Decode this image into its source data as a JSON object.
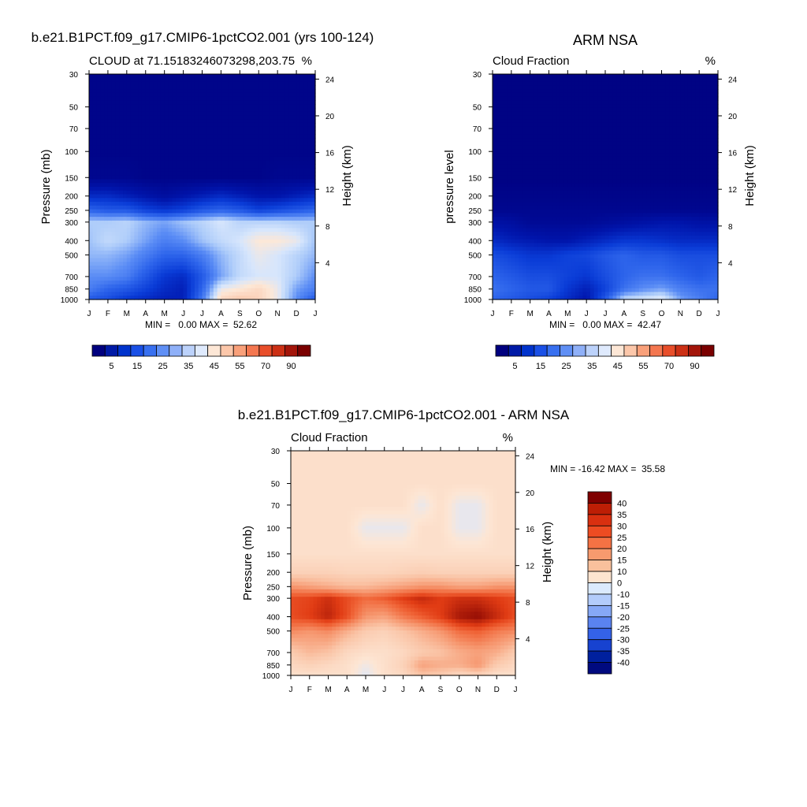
{
  "chart_data": [
    {
      "type": "heatmap",
      "id": "model",
      "title": "b.e21.B1PCT.f09_g17.CMIP6-1pctCO2.001 (yrs 100-124)",
      "subtitle_left": "CLOUD at 71.15183246073298,203.75",
      "subtitle_right": "%",
      "ylabel_left": "Pressure (mb)",
      "ylabel_right": "Height (km)",
      "x_ticks": [
        "J",
        "F",
        "M",
        "A",
        "M",
        "J",
        "J",
        "A",
        "S",
        "O",
        "N",
        "D",
        "J"
      ],
      "pressure_ticks": [
        "30",
        "50",
        "70",
        "100",
        "150",
        "200",
        "250",
        "300",
        "400",
        "500",
        "700",
        "850",
        "1000"
      ],
      "height_ticks": [
        "24",
        "20",
        "16",
        "12",
        "8",
        "4"
      ],
      "stats": "MIN =   0.00 MAX =  52.62",
      "colorbar_labels": [
        "5",
        "15",
        "25",
        "35",
        "45",
        "55",
        "70",
        "90"
      ],
      "colorbar_colors": [
        "#00007f",
        "#001aa6",
        "#0033cc",
        "#1a50e6",
        "#3870f0",
        "#5f8ff5",
        "#8fb0f8",
        "#bcd2fb",
        "#dfeafd",
        "#fde7d6",
        "#fcc7aa",
        "#f9a07a",
        "#f47750",
        "#e84e2a",
        "#cc3015",
        "#a3150a",
        "#7a0000"
      ],
      "x": [
        "J",
        "F",
        "M",
        "A",
        "M",
        "J",
        "J",
        "A",
        "S",
        "O",
        "N",
        "D",
        "J"
      ],
      "y_pressure": [
        30,
        50,
        70,
        100,
        150,
        200,
        250,
        300,
        400,
        500,
        700,
        850,
        1000
      ],
      "values": [
        [
          2,
          2,
          2,
          2,
          2,
          2,
          2,
          2,
          2,
          2,
          2,
          2,
          2
        ],
        [
          2,
          2,
          2,
          2,
          2,
          2,
          2,
          2,
          2,
          2,
          2,
          2,
          2
        ],
        [
          2,
          2,
          2,
          2,
          2,
          2,
          2,
          2,
          2,
          2,
          2,
          2,
          2
        ],
        [
          2,
          2,
          2,
          2,
          2,
          2,
          2,
          2,
          2,
          2,
          2,
          2,
          2
        ],
        [
          3,
          3,
          3,
          2,
          2,
          2,
          2,
          2,
          2,
          2,
          3,
          3,
          3
        ],
        [
          12,
          12,
          10,
          8,
          6,
          8,
          10,
          12,
          10,
          8,
          8,
          10,
          12
        ],
        [
          22,
          20,
          20,
          16,
          14,
          16,
          20,
          22,
          20,
          16,
          18,
          20,
          22
        ],
        [
          34,
          34,
          35,
          32,
          30,
          33,
          35,
          38,
          35,
          35,
          35,
          34,
          34
        ],
        [
          33,
          36,
          34,
          30,
          26,
          28,
          33,
          36,
          38,
          42,
          42,
          40,
          33
        ],
        [
          32,
          32,
          30,
          26,
          22,
          22,
          26,
          32,
          36,
          40,
          38,
          35,
          32
        ],
        [
          28,
          28,
          26,
          20,
          14,
          12,
          20,
          30,
          36,
          38,
          38,
          34,
          28
        ],
        [
          26,
          22,
          20,
          16,
          12,
          10,
          22,
          40,
          42,
          45,
          40,
          30,
          26
        ],
        [
          20,
          18,
          14,
          12,
          10,
          10,
          25,
          45,
          48,
          46,
          40,
          28,
          20
        ]
      ]
    },
    {
      "type": "heatmap",
      "id": "obs",
      "title": "ARM NSA",
      "subtitle_left": "Cloud Fraction",
      "subtitle_right": "%",
      "ylabel_left": "pressure level",
      "ylabel_right": "Height (km)",
      "x_ticks": [
        "J",
        "F",
        "M",
        "A",
        "M",
        "J",
        "J",
        "A",
        "S",
        "O",
        "N",
        "D",
        "J"
      ],
      "pressure_ticks": [
        "30",
        "50",
        "70",
        "100",
        "150",
        "200",
        "250",
        "300",
        "400",
        "500",
        "700",
        "850",
        "1000"
      ],
      "height_ticks": [
        "24",
        "20",
        "16",
        "12",
        "8",
        "4"
      ],
      "stats": "MIN =   0.00 MAX =  42.47",
      "colorbar_labels": [
        "5",
        "15",
        "25",
        "35",
        "45",
        "55",
        "70",
        "90"
      ],
      "x": [
        "J",
        "F",
        "M",
        "A",
        "M",
        "J",
        "J",
        "A",
        "S",
        "O",
        "N",
        "D",
        "J"
      ],
      "y_pressure": [
        30,
        50,
        70,
        100,
        150,
        200,
        250,
        300,
        400,
        500,
        700,
        850,
        1000
      ],
      "values": [
        [
          1,
          1,
          1,
          1,
          1,
          1,
          1,
          1,
          1,
          1,
          1,
          1,
          1
        ],
        [
          1,
          1,
          1,
          1,
          1,
          1,
          1,
          1,
          1,
          1,
          1,
          1,
          1
        ],
        [
          1,
          1,
          1,
          1,
          1,
          1,
          1,
          1,
          1,
          1,
          1,
          1,
          1
        ],
        [
          1,
          1,
          1,
          1,
          1,
          1,
          1,
          1,
          1,
          1,
          1,
          1,
          1
        ],
        [
          1,
          1,
          1,
          1,
          1,
          1,
          1,
          1,
          1,
          1,
          1,
          1,
          1
        ],
        [
          2,
          2,
          2,
          2,
          2,
          2,
          2,
          2,
          2,
          2,
          2,
          2,
          2
        ],
        [
          3,
          3,
          3,
          3,
          3,
          3,
          3,
          3,
          3,
          3,
          3,
          3,
          3
        ],
        [
          7,
          6,
          4,
          4,
          4,
          4,
          5,
          6,
          7,
          8,
          8,
          7,
          7
        ],
        [
          12,
          10,
          9,
          8,
          8,
          10,
          12,
          14,
          14,
          13,
          12,
          12,
          12
        ],
        [
          18,
          16,
          14,
          14,
          16,
          17,
          20,
          22,
          20,
          20,
          18,
          18,
          18
        ],
        [
          22,
          20,
          18,
          18,
          16,
          14,
          18,
          22,
          24,
          24,
          22,
          20,
          22
        ],
        [
          24,
          22,
          20,
          20,
          14,
          10,
          16,
          24,
          28,
          30,
          26,
          24,
          24
        ],
        [
          22,
          20,
          18,
          16,
          12,
          8,
          20,
          36,
          38,
          40,
          30,
          26,
          22
        ]
      ]
    },
    {
      "type": "heatmap",
      "id": "diff",
      "title": "b.e21.B1PCT.f09_g17.CMIP6-1pctCO2.001 - ARM NSA",
      "subtitle_left": "Cloud Fraction",
      "subtitle_right": "%",
      "ylabel_left": "Pressure (mb)",
      "ylabel_right": "Height (km)",
      "x_ticks": [
        "J",
        "F",
        "M",
        "A",
        "M",
        "J",
        "J",
        "A",
        "S",
        "O",
        "N",
        "D",
        "J"
      ],
      "pressure_ticks": [
        "30",
        "50",
        "70",
        "100",
        "150",
        "200",
        "250",
        "300",
        "400",
        "500",
        "700",
        "850",
        "1000"
      ],
      "height_ticks": [
        "24",
        "20",
        "16",
        "12",
        "8",
        "4"
      ],
      "stats": "MIN = -16.42 MAX =  35.58",
      "colorbar_labels": [
        "40",
        "35",
        "30",
        "25",
        "20",
        "15",
        "10",
        "0",
        "-10",
        "-15",
        "-20",
        "-25",
        "-30",
        "-35",
        "-40"
      ],
      "colorbar_colors": [
        "#7f0000",
        "#bd1e05",
        "#d93010",
        "#ed4c22",
        "#f47244",
        "#f79a6e",
        "#f9c09c",
        "#fde4cf",
        "#dbeafd",
        "#b3ccfb",
        "#86a8f6",
        "#5a83f0",
        "#3462e8",
        "#1742d0",
        "#00209e",
        "#000a7f"
      ],
      "x": [
        "J",
        "F",
        "M",
        "A",
        "M",
        "J",
        "J",
        "A",
        "S",
        "O",
        "N",
        "D",
        "J"
      ],
      "y_pressure": [
        30,
        50,
        70,
        100,
        150,
        200,
        250,
        300,
        400,
        500,
        700,
        850,
        1000
      ],
      "values": [
        [
          2,
          2,
          2,
          2,
          2,
          2,
          2,
          2,
          2,
          2,
          2,
          2,
          2
        ],
        [
          2,
          2,
          2,
          2,
          2,
          2,
          2,
          2,
          2,
          2,
          2,
          2,
          2
        ],
        [
          2,
          2,
          2,
          2,
          2,
          2,
          2,
          -3,
          2,
          -3,
          -3,
          2,
          2
        ],
        [
          2,
          2,
          2,
          2,
          -3,
          -3,
          -3,
          2,
          2,
          -3,
          -3,
          2,
          2
        ],
        [
          2,
          2,
          2,
          2,
          2,
          2,
          2,
          2,
          2,
          2,
          2,
          2,
          2
        ],
        [
          6,
          6,
          6,
          5,
          5,
          5,
          6,
          7,
          6,
          6,
          6,
          6,
          6
        ],
        [
          18,
          16,
          14,
          12,
          12,
          14,
          16,
          18,
          18,
          16,
          16,
          18,
          18
        ],
        [
          28,
          29,
          32,
          28,
          24,
          26,
          30,
          33,
          30,
          32,
          32,
          30,
          28
        ],
        [
          28,
          30,
          34,
          28,
          18,
          16,
          22,
          26,
          30,
          36,
          38,
          33,
          28
        ],
        [
          20,
          18,
          20,
          14,
          8,
          6,
          10,
          14,
          18,
          24,
          26,
          22,
          20
        ],
        [
          8,
          12,
          10,
          4,
          2,
          2,
          4,
          8,
          10,
          14,
          16,
          14,
          8
        ],
        [
          4,
          6,
          4,
          2,
          -2,
          2,
          6,
          16,
          14,
          14,
          18,
          8,
          4
        ],
        [
          2,
          2,
          2,
          2,
          -4,
          2,
          4,
          10,
          8,
          4,
          6,
          2,
          2
        ]
      ]
    }
  ]
}
